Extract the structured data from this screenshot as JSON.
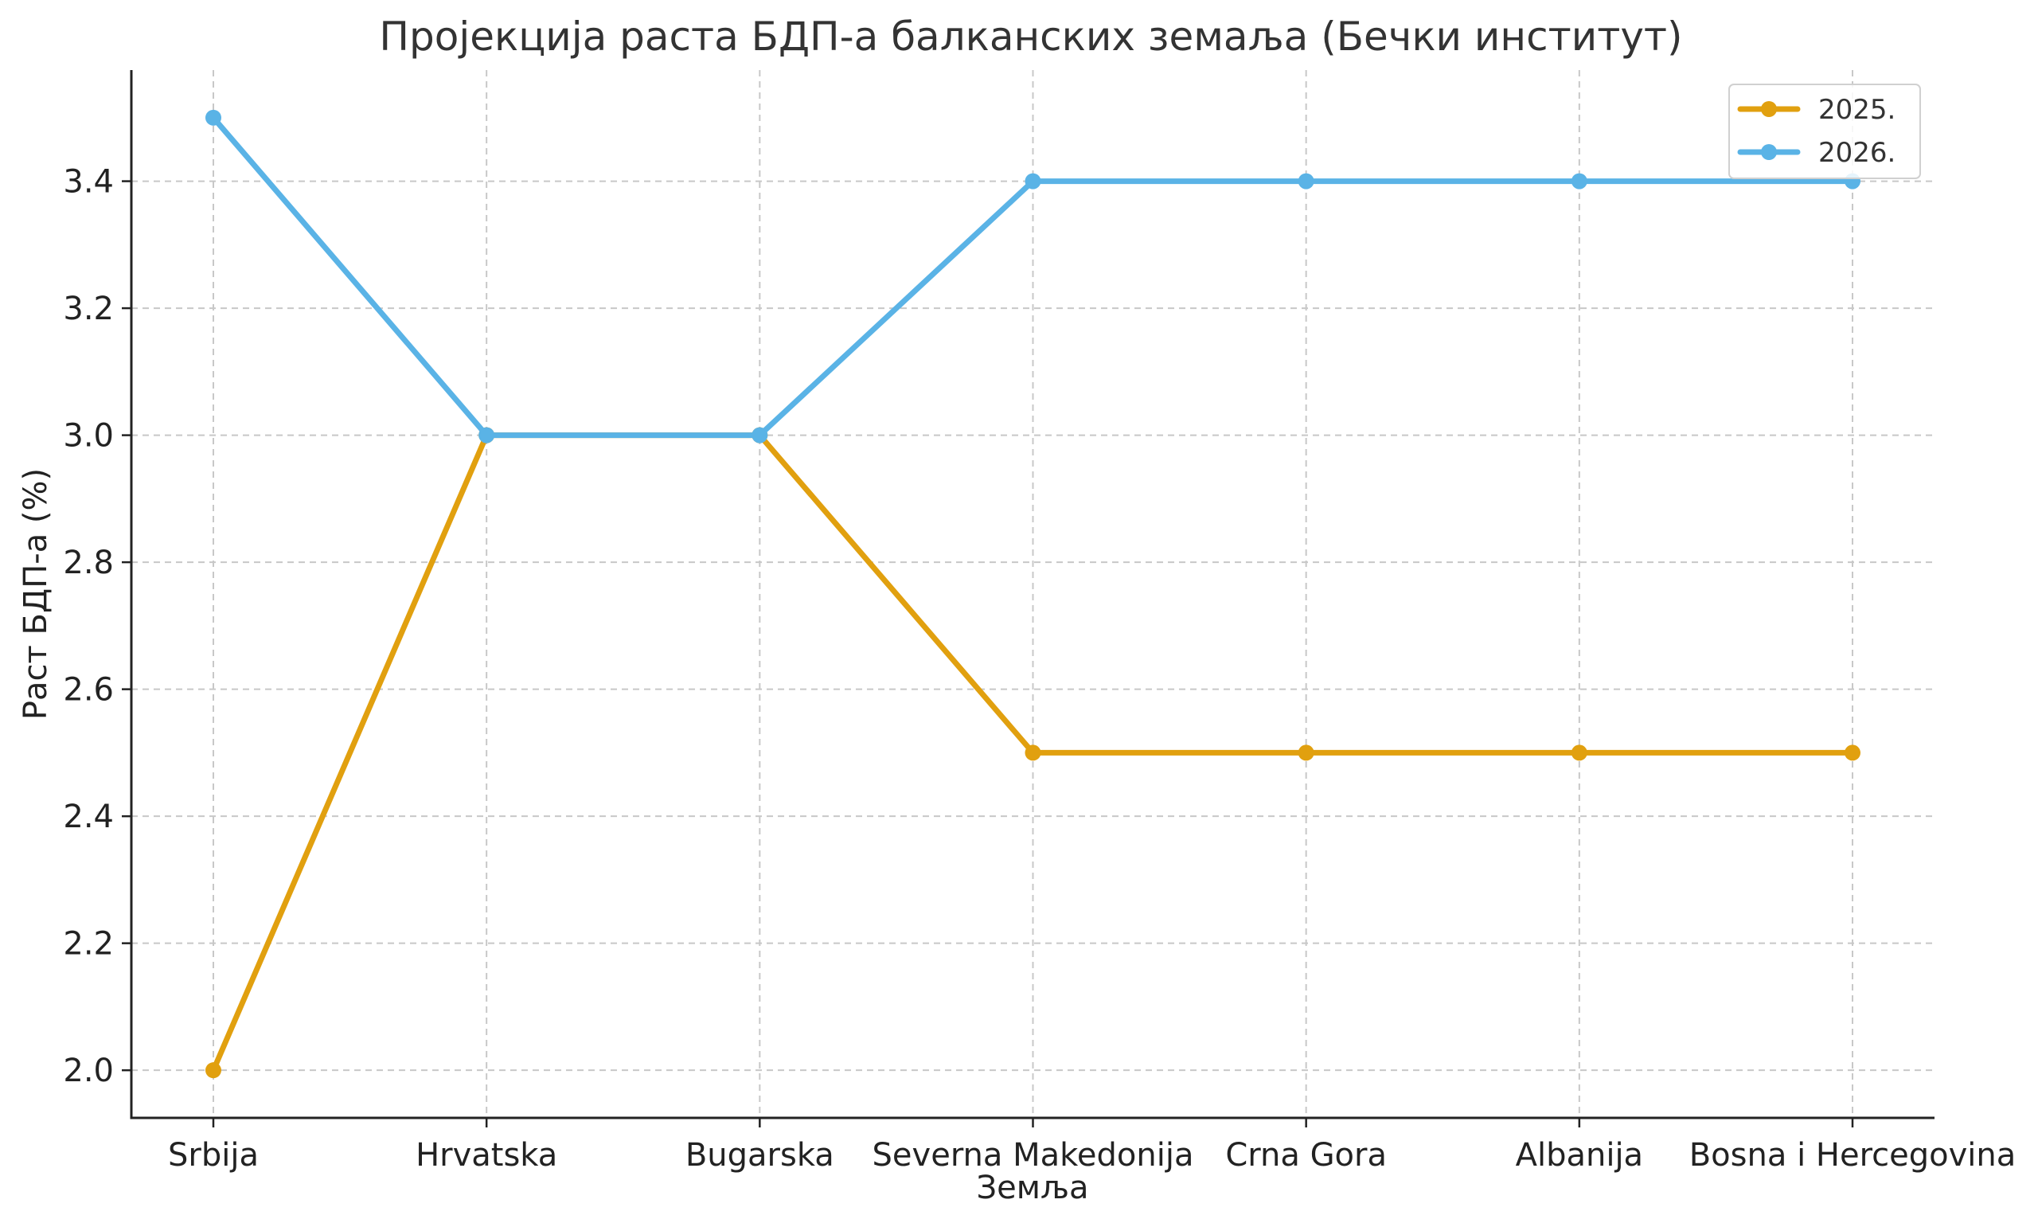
{
  "chart_data": {
    "type": "line",
    "title": "Пројекција раста БДП-а балканских земаља (Бечки институт)",
    "xlabel": "Земља",
    "ylabel": "Раст БДП-а (%)",
    "categories": [
      "Srbija",
      "Hrvatska",
      "Bugarska",
      "Severna Makedonija",
      "Crna Gora",
      "Albanija",
      "Bosna i Hercegovina"
    ],
    "series": [
      {
        "name": "2025.",
        "color": "#E1A00F",
        "values": [
          2.0,
          3.0,
          3.0,
          2.5,
          2.5,
          2.5,
          2.5
        ]
      },
      {
        "name": "2026.",
        "color": "#5AB3E6",
        "values": [
          3.5,
          3.0,
          3.0,
          3.4,
          3.4,
          3.4,
          3.4
        ]
      }
    ],
    "ylim": [
      1.925,
      3.575
    ],
    "yticks": [
      "2.0",
      "2.2",
      "2.4",
      "2.6",
      "2.8",
      "3.0",
      "3.2",
      "3.4"
    ],
    "grid": true,
    "legend_position": "top-right"
  }
}
